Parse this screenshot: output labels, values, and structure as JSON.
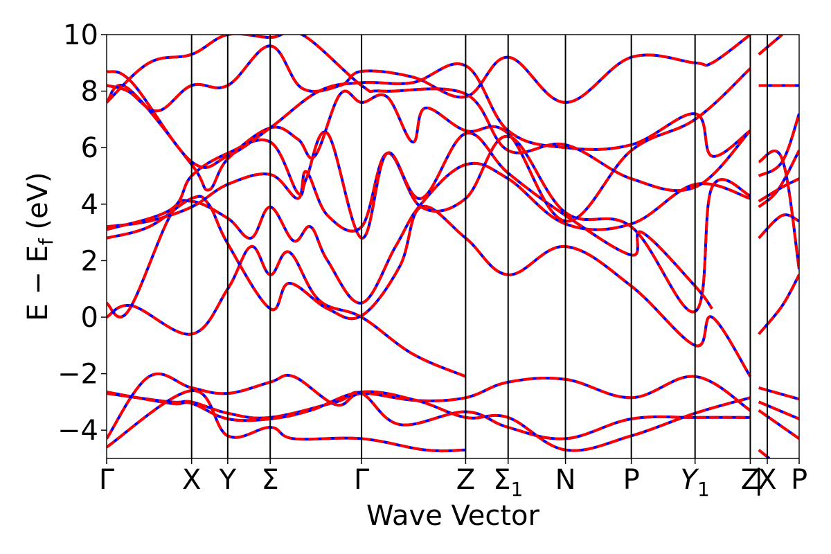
{
  "chart_data": {
    "type": "line",
    "title": "",
    "xlabel": "Wave Vector",
    "ylabel": "E − E",
    "ylabel_sub": "f",
    "ylabel_unit": " (eV)",
    "ylim": [
      -5,
      10
    ],
    "yticks": [
      -4,
      -2,
      0,
      2,
      4,
      6,
      8,
      10
    ],
    "ytick_labels": [
      "−4",
      "−2",
      "0",
      "2",
      "4",
      "6",
      "8",
      "10"
    ],
    "xlim": [
      0,
      16.3
    ],
    "grid": false,
    "legend": "none",
    "colors": {
      "solid": "#0000ff",
      "dashed": "#ff0000",
      "vline": "#000000"
    },
    "kpoints": [
      {
        "label": "Γ",
        "x": 0
      },
      {
        "label": "X",
        "x": 2.0
      },
      {
        "label": "Y",
        "x": 2.85
      },
      {
        "label": "Σ",
        "x": 3.85
      },
      {
        "label": "Γ",
        "x": 6.0
      },
      {
        "label": "Z",
        "x": 8.45
      },
      {
        "label": "Σ",
        "sub": "1",
        "x": 9.45
      },
      {
        "label": "N",
        "x": 10.8
      },
      {
        "label": "P",
        "x": 12.35
      },
      {
        "label": "Y",
        "sub": "1",
        "italic": true,
        "x": 13.85
      },
      {
        "label": "Z",
        "x": 15.15
      },
      {
        "label": "|",
        "x": 15.35
      },
      {
        "label": "X",
        "x": 15.55
      },
      {
        "label": "P",
        "x": 16.3
      }
    ],
    "segment_breaks": [
      15.15
    ],
    "series": [
      {
        "points": [
          [
            0,
            -4.3
          ],
          [
            1.0,
            -2.1
          ],
          [
            2.0,
            -2.5
          ],
          [
            2.85,
            -2.7
          ],
          [
            3.85,
            -2.3
          ],
          [
            4.4,
            -2.1
          ],
          [
            5.4,
            -3.1
          ],
          [
            6.0,
            -2.7
          ],
          [
            7.3,
            -2.95
          ],
          [
            8.45,
            -2.85
          ],
          [
            9.45,
            -2.3
          ],
          [
            10.8,
            -2.2
          ],
          [
            12.35,
            -2.85
          ],
          [
            13.85,
            -2.1
          ],
          [
            15.15,
            -3.3
          ]
        ]
      },
      {
        "points": [
          [
            0,
            -2.7
          ],
          [
            1.5,
            -3.0
          ],
          [
            2.0,
            -3.0
          ],
          [
            2.85,
            -3.4
          ],
          [
            3.85,
            -3.55
          ],
          [
            5.4,
            -3.0
          ],
          [
            6.0,
            -2.7
          ],
          [
            6.9,
            -3.8
          ],
          [
            8.45,
            -3.35
          ],
          [
            9.45,
            -3.9
          ],
          [
            10.8,
            -4.3
          ],
          [
            12.35,
            -3.6
          ],
          [
            13.85,
            -3.55
          ],
          [
            15.15,
            -3.55
          ]
        ]
      },
      {
        "points": [
          [
            0,
            -2.65
          ],
          [
            1.5,
            -3.05
          ],
          [
            2.0,
            -3.05
          ],
          [
            2.85,
            -3.6
          ],
          [
            3.85,
            -3.6
          ],
          [
            4.8,
            -3.3
          ],
          [
            6.0,
            -2.65
          ],
          [
            7.3,
            -2.95
          ],
          [
            8.45,
            -3.55
          ],
          [
            9.45,
            -3.55
          ],
          [
            10.8,
            -4.7
          ],
          [
            12.35,
            -4.2
          ],
          [
            13.85,
            -3.4
          ],
          [
            15.15,
            -2.85
          ]
        ]
      },
      {
        "points": [
          [
            0,
            -4.6
          ],
          [
            2.0,
            -2.6
          ],
          [
            2.85,
            -4.2
          ],
          [
            3.85,
            -3.9
          ],
          [
            4.4,
            -4.3
          ],
          [
            6.0,
            -4.3
          ],
          [
            7.5,
            -4.7
          ],
          [
            8.45,
            -4.7
          ]
        ]
      },
      {
        "points": [
          [
            0,
            0.0
          ],
          [
            0.6,
            0.4
          ],
          [
            2.0,
            -0.6
          ],
          [
            2.85,
            1.0
          ],
          [
            3.4,
            2.5
          ],
          [
            3.85,
            1.5
          ],
          [
            4.3,
            2.3
          ],
          [
            5.0,
            0.6
          ],
          [
            6.0,
            0.0
          ],
          [
            7.2,
            -1.3
          ],
          [
            8.45,
            -2.1
          ]
        ]
      },
      {
        "points": [
          [
            0,
            0.5
          ],
          [
            0.5,
            0.2
          ],
          [
            1.5,
            3.6
          ],
          [
            2.0,
            4.1
          ],
          [
            2.85,
            3.5
          ],
          [
            3.4,
            2.8
          ],
          [
            3.85,
            3.9
          ],
          [
            4.4,
            2.7
          ],
          [
            4.8,
            3.2
          ],
          [
            5.2,
            2.0
          ],
          [
            6.0,
            0.5
          ],
          [
            6.8,
            2.5
          ],
          [
            7.4,
            4.0
          ],
          [
            8.45,
            5.4
          ],
          [
            9.45,
            4.9
          ],
          [
            10.8,
            3.3
          ],
          [
            12.35,
            3.3
          ],
          [
            13.85,
            4.7
          ],
          [
            15.15,
            4.2
          ]
        ]
      },
      {
        "points": [
          [
            0,
            2.8
          ],
          [
            1.0,
            3.2
          ],
          [
            2.0,
            4.2
          ],
          [
            2.4,
            4.0
          ],
          [
            2.85,
            2.6
          ],
          [
            3.85,
            0.3
          ],
          [
            4.3,
            1.2
          ],
          [
            5.2,
            0.3
          ],
          [
            6.0,
            0.05
          ],
          [
            6.9,
            1.8
          ],
          [
            7.4,
            3.9
          ],
          [
            8.45,
            2.8
          ],
          [
            9.45,
            1.5
          ],
          [
            10.8,
            2.5
          ],
          [
            12.35,
            1.1
          ],
          [
            13.85,
            -1.0
          ],
          [
            14.25,
            0.0
          ],
          [
            15.15,
            -2.1
          ]
        ]
      },
      {
        "points": [
          [
            0,
            3.2
          ],
          [
            1.0,
            3.4
          ],
          [
            2.0,
            3.9
          ],
          [
            2.85,
            4.7
          ],
          [
            3.85,
            5.05
          ],
          [
            4.5,
            4.2
          ],
          [
            4.7,
            5.15
          ],
          [
            5.2,
            3.6
          ],
          [
            6.0,
            3.2
          ],
          [
            6.6,
            5.8
          ],
          [
            7.4,
            3.9
          ],
          [
            8.45,
            4.2
          ],
          [
            9.45,
            6.4
          ],
          [
            10.8,
            3.7
          ],
          [
            12.35,
            3.2
          ],
          [
            13.85,
            0.2
          ],
          [
            14.25,
            4.6
          ],
          [
            15.15,
            4.3
          ]
        ]
      },
      {
        "points": [
          [
            0,
            3.1
          ],
          [
            1.5,
            3.8
          ],
          [
            2.0,
            5.0
          ],
          [
            2.85,
            5.8
          ],
          [
            3.85,
            6.2
          ],
          [
            4.5,
            4.4
          ],
          [
            4.7,
            4.9
          ],
          [
            5.2,
            6.5
          ],
          [
            6.0,
            2.8
          ],
          [
            6.6,
            5.8
          ],
          [
            7.4,
            4.2
          ],
          [
            8.45,
            6.5
          ],
          [
            9.45,
            5.1
          ],
          [
            10.8,
            3.6
          ],
          [
            12.35,
            2.2
          ],
          [
            12.6,
            3.0
          ],
          [
            13.85,
            1.1
          ],
          [
            14.25,
            0.3
          ]
        ]
      },
      {
        "points": [
          [
            0,
            7.6
          ],
          [
            0.5,
            8.1
          ],
          [
            2.0,
            5.4
          ],
          [
            2.4,
            4.5
          ],
          [
            2.85,
            5.6
          ],
          [
            3.85,
            6.7
          ],
          [
            4.5,
            6.3
          ],
          [
            4.9,
            5.7
          ],
          [
            5.5,
            7.9
          ],
          [
            6.0,
            7.6
          ],
          [
            6.6,
            7.8
          ],
          [
            7.2,
            6.2
          ],
          [
            7.5,
            7.4
          ],
          [
            8.45,
            6.6
          ],
          [
            9.45,
            6.5
          ],
          [
            10.8,
            3.4
          ],
          [
            12.35,
            5.9
          ],
          [
            13.85,
            7.0
          ],
          [
            15.15,
            8.8
          ]
        ]
      },
      {
        "points": [
          [
            0,
            8.2
          ],
          [
            0.5,
            8.0
          ],
          [
            1.2,
            7.3
          ],
          [
            2.0,
            8.2
          ],
          [
            2.85,
            8.2
          ],
          [
            3.85,
            9.6
          ],
          [
            4.6,
            8.1
          ],
          [
            5.5,
            8.2
          ],
          [
            6.0,
            8.7
          ],
          [
            7.2,
            8.5
          ],
          [
            8.45,
            7.8
          ],
          [
            9.45,
            9.2
          ],
          [
            10.8,
            7.6
          ],
          [
            12.35,
            9.2
          ],
          [
            13.85,
            9.0
          ],
          [
            14.25,
            9.0
          ],
          [
            15.15,
            10.0
          ]
        ]
      },
      {
        "points": [
          [
            0,
            8.7
          ],
          [
            0.6,
            8.3
          ],
          [
            2.0,
            5.5
          ],
          [
            2.85,
            5.7
          ],
          [
            3.85,
            6.7
          ],
          [
            5.0,
            8.0
          ],
          [
            6.0,
            8.3
          ],
          [
            7.2,
            8.3
          ],
          [
            8.45,
            8.9
          ],
          [
            9.45,
            6.6
          ],
          [
            10.8,
            6.0
          ],
          [
            12.35,
            6.1
          ],
          [
            13.85,
            7.2
          ],
          [
            14.25,
            5.7
          ],
          [
            15.15,
            6.6
          ]
        ]
      },
      {
        "points": [
          [
            0,
            7.6
          ],
          [
            1.0,
            9.0
          ],
          [
            2.0,
            9.3
          ],
          [
            2.85,
            10.0
          ],
          [
            3.85,
            9.9
          ],
          [
            4.6,
            10.0
          ],
          [
            6.0,
            8.2
          ],
          [
            6.5,
            8.0
          ],
          [
            8.45,
            7.9
          ],
          [
            9.45,
            5.9
          ],
          [
            10.8,
            6.1
          ],
          [
            12.35,
            4.9
          ],
          [
            13.85,
            4.6
          ],
          [
            15.15,
            6.6
          ]
        ]
      }
    ],
    "right_segment": [
      {
        "points": [
          [
            15.35,
            -0.6
          ],
          [
            15.9,
            0.4
          ],
          [
            16.3,
            1.5
          ]
        ]
      },
      {
        "points": [
          [
            15.35,
            2.8
          ],
          [
            15.9,
            3.6
          ],
          [
            16.3,
            3.4
          ]
        ]
      },
      {
        "points": [
          [
            15.35,
            3.9
          ],
          [
            15.8,
            4.5
          ],
          [
            16.3,
            5.9
          ]
        ]
      },
      {
        "points": [
          [
            15.35,
            4.1
          ],
          [
            15.9,
            4.6
          ],
          [
            16.3,
            4.9
          ]
        ]
      },
      {
        "points": [
          [
            15.35,
            5.0
          ],
          [
            15.9,
            5.5
          ],
          [
            16.3,
            7.2
          ]
        ]
      },
      {
        "points": [
          [
            15.35,
            5.5
          ],
          [
            15.9,
            5.6
          ],
          [
            16.3,
            1.7
          ]
        ]
      },
      {
        "points": [
          [
            15.35,
            8.2
          ],
          [
            16.3,
            8.2
          ]
        ]
      },
      {
        "points": [
          [
            15.35,
            9.3
          ],
          [
            15.9,
            10.0
          ]
        ]
      },
      {
        "points": [
          [
            15.35,
            -2.5
          ],
          [
            16.3,
            -2.9
          ]
        ]
      },
      {
        "points": [
          [
            15.35,
            -3.0
          ],
          [
            16.3,
            -3.6
          ]
        ]
      },
      {
        "points": [
          [
            15.35,
            -3.3
          ],
          [
            16.3,
            -4.3
          ]
        ]
      },
      {
        "points": [
          [
            15.35,
            -4.7
          ],
          [
            15.6,
            -5.0
          ]
        ]
      }
    ]
  }
}
